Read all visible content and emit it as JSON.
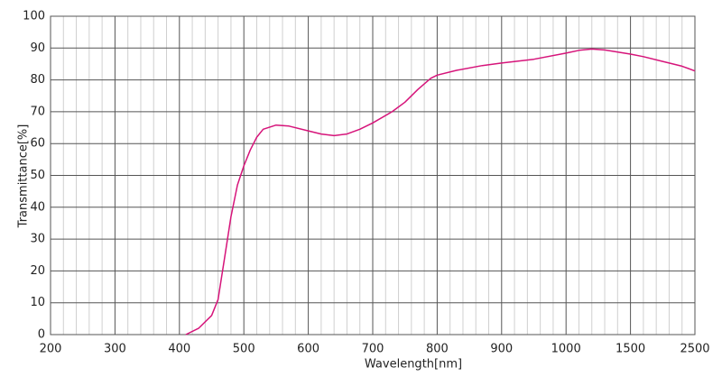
{
  "chart_data": {
    "type": "line",
    "x_label": "Wavelength[nm]",
    "y_label": "Transmittance[%]",
    "xlim": [
      200,
      2500
    ],
    "ylim": [
      0,
      100
    ],
    "xticks": [
      200,
      300,
      400,
      500,
      600,
      700,
      800,
      900,
      1000,
      1500,
      2500
    ],
    "xminorticks": [
      220,
      240,
      260,
      280,
      320,
      340,
      360,
      380,
      420,
      440,
      460,
      480,
      520,
      540,
      560,
      580,
      620,
      640,
      660,
      680,
      720,
      740,
      760,
      780,
      820,
      840,
      860,
      880,
      920,
      940,
      960,
      980,
      1100,
      1200,
      1300,
      1400,
      1700,
      1900,
      2100,
      2300
    ],
    "yticks": [
      0,
      10,
      20,
      30,
      40,
      50,
      60,
      70,
      80,
      90,
      100
    ],
    "grid": true,
    "series": [
      {
        "color": "#d6147a",
        "x": [
          410,
          430,
          450,
          460,
          470,
          480,
          490,
          500,
          510,
          520,
          530,
          550,
          570,
          600,
          620,
          640,
          660,
          680,
          700,
          730,
          750,
          770,
          790,
          800,
          830,
          870,
          900,
          950,
          1000,
          1100,
          1200,
          1300,
          1500,
          1700,
          2000,
          2300,
          2500
        ],
        "values": [
          0,
          2,
          6,
          11,
          24,
          37,
          47,
          53,
          58,
          62,
          64.5,
          65.8,
          65.5,
          64,
          63,
          62.5,
          63,
          64.5,
          66.5,
          70,
          73,
          77,
          80.5,
          81.5,
          83,
          84.5,
          85.3,
          86.5,
          88.4,
          89.3,
          89.7,
          89.4,
          88.1,
          87.3,
          85.8,
          84.3,
          82.8
        ]
      }
    ]
  }
}
